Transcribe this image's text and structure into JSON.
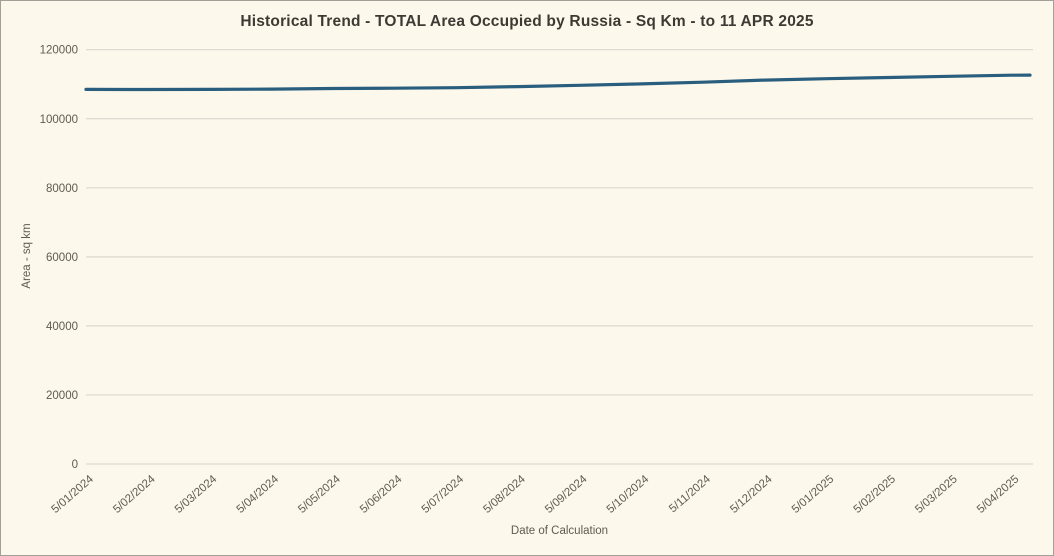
{
  "colors": {
    "background": "#fdf8ec",
    "border": "#a3a09a",
    "gridline": "#dcd9d0",
    "line": "#2a5e7e",
    "title_text": "#3d3a34",
    "axis_text": "#605b50"
  },
  "chart_data": {
    "type": "line",
    "title": "Historical Trend - TOTAL Area Occupied by Russia - Sq Km - to 11 APR 2025",
    "xlabel": "Date of Calculation",
    "ylabel": "Area - sq km",
    "ylim": [
      0,
      120000
    ],
    "yticks": [
      0,
      20000,
      40000,
      60000,
      80000,
      100000,
      120000
    ],
    "grid": "horizontal-only",
    "legend_position": "none",
    "x_tick_labels": [
      "5/01/2024",
      "5/02/2024",
      "5/03/2024",
      "5/04/2024",
      "5/05/2024",
      "5/06/2024",
      "5/07/2024",
      "5/08/2024",
      "5/09/2024",
      "5/10/2024",
      "5/11/2024",
      "5/12/2024",
      "5/01/2025",
      "5/02/2025",
      "5/03/2025",
      "5/04/2025"
    ],
    "series": [
      {
        "name": "TOTAL Area Occupied by Russia - Sq Km",
        "points": [
          {
            "x": "5/01/2024",
            "m": 0,
            "y": 108500
          },
          {
            "x": "5/02/2024",
            "m": 1,
            "y": 108480
          },
          {
            "x": "5/03/2024",
            "m": 2,
            "y": 108500
          },
          {
            "x": "5/04/2024",
            "m": 3,
            "y": 108600
          },
          {
            "x": "5/05/2024",
            "m": 4,
            "y": 108750
          },
          {
            "x": "5/06/2024",
            "m": 5,
            "y": 108850
          },
          {
            "x": "5/07/2024",
            "m": 6,
            "y": 109000
          },
          {
            "x": "5/08/2024",
            "m": 7,
            "y": 109300
          },
          {
            "x": "5/09/2024",
            "m": 8,
            "y": 109700
          },
          {
            "x": "5/10/2024",
            "m": 9,
            "y": 110100
          },
          {
            "x": "5/11/2024",
            "m": 10,
            "y": 110600
          },
          {
            "x": "5/12/2024",
            "m": 11,
            "y": 111200
          },
          {
            "x": "5/01/2025",
            "m": 12,
            "y": 111600
          },
          {
            "x": "5/02/2025",
            "m": 13,
            "y": 111950
          },
          {
            "x": "5/03/2025",
            "m": 14,
            "y": 112290
          },
          {
            "x": "5/04/2025",
            "m": 15,
            "y": 112600
          },
          {
            "x": "11/04/2025",
            "m": 15.3,
            "y": 112650
          }
        ]
      }
    ]
  }
}
